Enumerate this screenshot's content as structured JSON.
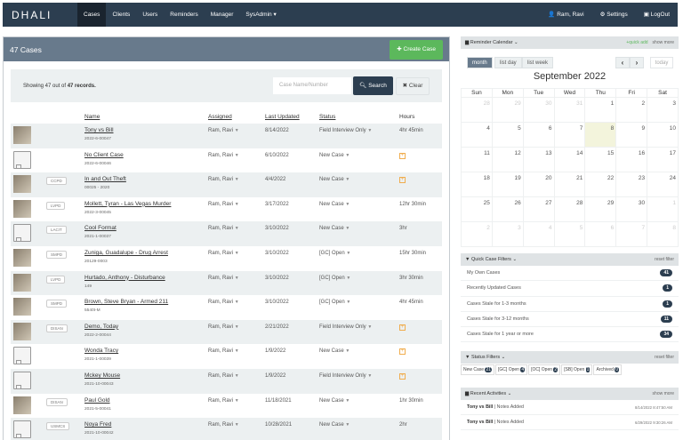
{
  "navbar": {
    "brand": "DHALI",
    "items": [
      {
        "label": "Cases",
        "active": true
      },
      {
        "label": "Clients"
      },
      {
        "label": "Users"
      },
      {
        "label": "Reminders"
      },
      {
        "label": "Manager"
      },
      {
        "label": "SysAdmin ▾"
      }
    ],
    "right": {
      "user": "Ram, Ravi",
      "settings": "Settings",
      "logout": "LogOut"
    }
  },
  "cases": {
    "title": "47 Cases",
    "create_label": "Create Case",
    "showing_prefix": "Showing 47 out of",
    "showing_bold": "47 records.",
    "search_placeholder": "Case Name/Number",
    "search_label": "Search",
    "clear_label": "Clear",
    "columns": {
      "name": "Name",
      "assigned": "Assigned",
      "updated": "Last Updated",
      "status": "Status",
      "hours": "Hours"
    },
    "rows": [
      {
        "thumb": "photo",
        "agency": "",
        "name": "Tony vs Bill",
        "number": "2022-6-00047",
        "assigned": "Ram, Ravi",
        "updated": "8/14/2022",
        "status": "Field Interview Only",
        "hours": "4hr 45min"
      },
      {
        "thumb": "folder",
        "agency": "",
        "name": "No Client Case",
        "number": "2022-6-00046",
        "assigned": "Ram, Ravi",
        "updated": "6/10/2022",
        "status": "New Case",
        "hours": ""
      },
      {
        "thumb": "photo",
        "agency": "CCPD",
        "name": "In and Out Theft",
        "number": "00025 - 2020",
        "assigned": "Ram, Ravi",
        "updated": "4/4/2022",
        "status": "New Case",
        "hours": ""
      },
      {
        "thumb": "photo",
        "agency": "LVPD",
        "name": "Mollett, Tyran - Las Vegas Murder",
        "number": "2022-3-00045",
        "assigned": "Ram, Ravi",
        "updated": "3/17/2022",
        "status": "New Case",
        "hours": "12hr 30min"
      },
      {
        "thumb": "folder",
        "agency": "LACIT",
        "name": "Cool Format",
        "number": "2021-1-00037",
        "assigned": "Ram, Ravi",
        "updated": "3/10/2022",
        "status": "New Case",
        "hours": "3hr"
      },
      {
        "thumb": "photo",
        "agency": "SMPD",
        "name": "Zuniga, Guadalupe - Drug Arrest",
        "number": "20129-0003",
        "assigned": "Ram, Ravi",
        "updated": "3/10/2022",
        "status": "[GC] Open",
        "hours": "15hr 30min"
      },
      {
        "thumb": "photo",
        "agency": "LVPD",
        "name": "Hurtado, Anthony - Disturbance",
        "number": "149",
        "assigned": "Ram, Ravi",
        "updated": "3/10/2022",
        "status": "[GC] Open",
        "hours": "3hr 30min"
      },
      {
        "thumb": "photo",
        "agency": "SMPD",
        "name": "Brown, Steve Bryan - Armed 211",
        "number": "5540t-M",
        "assigned": "Ram, Ravi",
        "updated": "3/10/2022",
        "status": "[GC] Open",
        "hours": "4hr 45min"
      },
      {
        "thumb": "photo",
        "agency": "DISAN",
        "name": "Demo, Today",
        "number": "2022-2-00044",
        "assigned": "Ram, Ravi",
        "updated": "2/21/2022",
        "status": "Field Interview Only",
        "hours": ""
      },
      {
        "thumb": "folder",
        "agency": "",
        "name": "Wonda Tracy",
        "number": "2021-1-00039",
        "assigned": "Ram, Ravi",
        "updated": "1/9/2022",
        "status": "New Case",
        "hours": ""
      },
      {
        "thumb": "folder",
        "agency": "",
        "name": "Mckey Mouse",
        "number": "2021-10-00043",
        "assigned": "Ram, Ravi",
        "updated": "1/9/2022",
        "status": "Field Interview Only",
        "hours": ""
      },
      {
        "thumb": "photo",
        "agency": "DISAN",
        "name": "Paul Gold",
        "number": "2021-5-00041",
        "assigned": "Ram, Ravi",
        "updated": "11/18/2021",
        "status": "New Case",
        "hours": "1hr 30min"
      },
      {
        "thumb": "folder",
        "agency": "USMCS",
        "name": "Noya Fred",
        "number": "2021-10-00042",
        "assigned": "Ram, Ravi",
        "updated": "10/28/2021",
        "status": "New Case",
        "hours": "2hr"
      }
    ]
  },
  "calendar": {
    "header": "Reminder Calendar",
    "quick_add": "quick add",
    "show_more": "show more",
    "views": [
      "month",
      "list day",
      "list week"
    ],
    "today_label": "today",
    "title": "September 2022",
    "weekdays": [
      "Sun",
      "Mon",
      "Tue",
      "Wed",
      "Thu",
      "Fri",
      "Sat"
    ],
    "weeks": [
      [
        "28",
        "29",
        "30",
        "31",
        "1",
        "2",
        "3"
      ],
      [
        "4",
        "5",
        "6",
        "7",
        "8",
        "9",
        "10"
      ],
      [
        "11",
        "12",
        "13",
        "14",
        "15",
        "16",
        "17"
      ],
      [
        "18",
        "19",
        "20",
        "21",
        "22",
        "23",
        "24"
      ],
      [
        "25",
        "26",
        "27",
        "28",
        "29",
        "30",
        "1"
      ],
      [
        "2",
        "3",
        "4",
        "5",
        "6",
        "7",
        "8"
      ]
    ]
  },
  "quick_filters": {
    "header": "Quick Case Filters",
    "reset": "reset filter",
    "items": [
      {
        "label": "My Own Cases",
        "count": "41"
      },
      {
        "label": "Recently Updated Cases",
        "count": "1"
      },
      {
        "label": "Cases Stale for 1-3 months",
        "count": "1"
      },
      {
        "label": "Cases Stale for 3-12 months",
        "count": "11"
      },
      {
        "label": "Cases Stale for 1 year or more",
        "count": "34"
      }
    ]
  },
  "status_filters": {
    "header": "Status Filters",
    "reset": "reset filter",
    "items": [
      {
        "label": "New Case",
        "count": "21"
      },
      {
        "label": "[GC] Open",
        "count": "4"
      },
      {
        "label": "[OC] Open",
        "count": "2"
      },
      {
        "label": "[SB] Open",
        "count": "1"
      },
      {
        "label": "Archived",
        "count": "0"
      }
    ]
  },
  "recent": {
    "header": "Recent Activities",
    "show_more": "show more",
    "items": [
      {
        "case": "Tony vs Bill",
        "action": "Notes Added",
        "time": "8/14/2022 8:47:50 AM"
      },
      {
        "case": "Tony vs Bill",
        "action": "Notes Added",
        "time": "6/29/2022 9:30:26 AM"
      }
    ]
  }
}
